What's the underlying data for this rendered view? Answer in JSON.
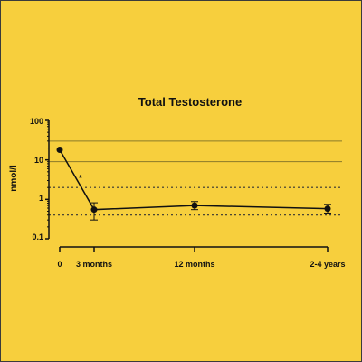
{
  "chart_data": {
    "type": "line",
    "title": "Total Testosterone",
    "xlabel": "",
    "ylabel": "nmol/l",
    "y_scale": "log",
    "ylim": [
      0.1,
      100
    ],
    "yticks": [
      "0.1",
      "1",
      "10",
      "100"
    ],
    "categories": [
      "0",
      "3 months",
      "12 months",
      "2-4 years"
    ],
    "x_positions_months": [
      0,
      3,
      12,
      30
    ],
    "series": [
      {
        "values": [
          18,
          0.55,
          0.7,
          0.58
        ],
        "error_low": [
          18,
          0.3,
          0.55,
          0.45
        ],
        "error_high": [
          18,
          0.82,
          0.88,
          0.75
        ]
      }
    ],
    "reference_lines": {
      "solid": [
        30,
        9
      ],
      "dotted": [
        2,
        0.4
      ]
    },
    "annotation": "*",
    "colors": {
      "background": "#f7cf3d",
      "line": "#111111",
      "reference": "#8a7a2a"
    },
    "grid": false
  }
}
